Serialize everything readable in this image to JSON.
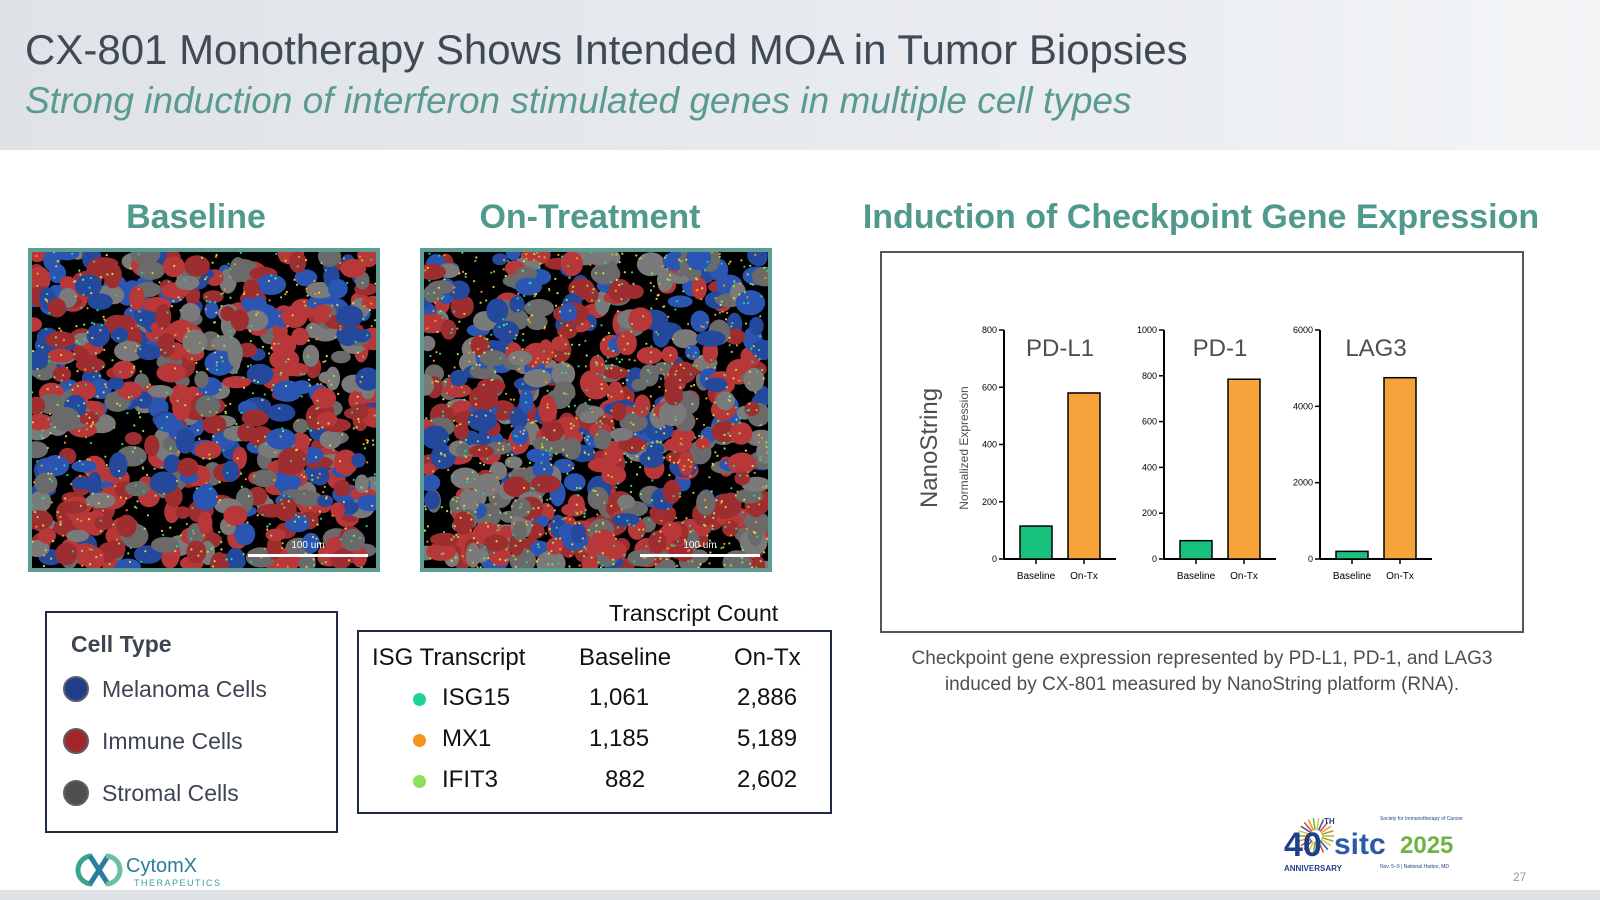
{
  "header": {
    "title": "CX-801 Monotherapy Shows Intended MOA in Tumor Biopsies",
    "subtitle": "Strong induction of interferon stimulated genes in multiple cell types"
  },
  "images": {
    "baseline_title": "Baseline",
    "on_treatment_title": "On-Treatment",
    "scale_label": "100 um"
  },
  "legend": {
    "title": "Cell Type",
    "items": [
      {
        "label": "Melanoma Cells",
        "color": "#1f3f8a"
      },
      {
        "label": "Immune Cells",
        "color": "#a3262a"
      },
      {
        "label": "Stromal Cells",
        "color": "#4f4f4f"
      }
    ]
  },
  "transcripts": {
    "caption": "Transcript Count",
    "headers": [
      "ISG Transcript",
      "Baseline",
      "On-Tx"
    ],
    "rows": [
      {
        "name": "ISG15",
        "baseline": "1,061",
        "on_tx": "2,886",
        "color": "#1ed39a"
      },
      {
        "name": "MX1",
        "baseline": "1,185",
        "on_tx": "5,189",
        "color": "#f7941d"
      },
      {
        "name": "IFIT3",
        "baseline": "882",
        "on_tx": "2,602",
        "color": "#8ee05a"
      }
    ]
  },
  "checkpoint": {
    "section_title": "Induction of Checkpoint Gene Expression",
    "caption_line1": "Checkpoint gene expression represented by PD-L1, PD-1, and LAG3",
    "caption_line2": "induced by CX-801 measured by NanoString platform (RNA)."
  },
  "chart_data": [
    {
      "type": "bar",
      "title": "PD-L1",
      "categories": [
        "Baseline",
        "On-Tx"
      ],
      "values": [
        115,
        580
      ],
      "ylabel": "NanoString Normalized Expression",
      "ylim": [
        0,
        800
      ],
      "yticks": [
        0,
        200,
        400,
        600,
        800
      ],
      "colors": [
        "#19c27c",
        "#f7a33b"
      ]
    },
    {
      "type": "bar",
      "title": "PD-1",
      "categories": [
        "Baseline",
        "On-Tx"
      ],
      "values": [
        80,
        785
      ],
      "ylim": [
        0,
        1000
      ],
      "yticks": [
        0,
        200,
        400,
        600,
        800,
        1000
      ],
      "colors": [
        "#19c27c",
        "#f7a33b"
      ]
    },
    {
      "type": "bar",
      "title": "LAG3",
      "categories": [
        "Baseline",
        "On-Tx"
      ],
      "values": [
        200,
        4750
      ],
      "ylim": [
        0,
        6000
      ],
      "yticks": [
        0,
        2000,
        4000,
        6000
      ],
      "colors": [
        "#19c27c",
        "#f7a33b"
      ]
    }
  ],
  "footer": {
    "company_name": "CytomX",
    "company_sub": "THERAPEUTICS",
    "sitc_number": "40",
    "sitc_th": "TH",
    "sitc_anniversary": "ANNIVERSARY",
    "sitc_brand": "sitc",
    "sitc_year": "2025",
    "sitc_society": "Society for Immunotherapy of Cancer",
    "sitc_dates": "Nov. 5–9 | National Harbor, MD",
    "page_number": "27"
  }
}
